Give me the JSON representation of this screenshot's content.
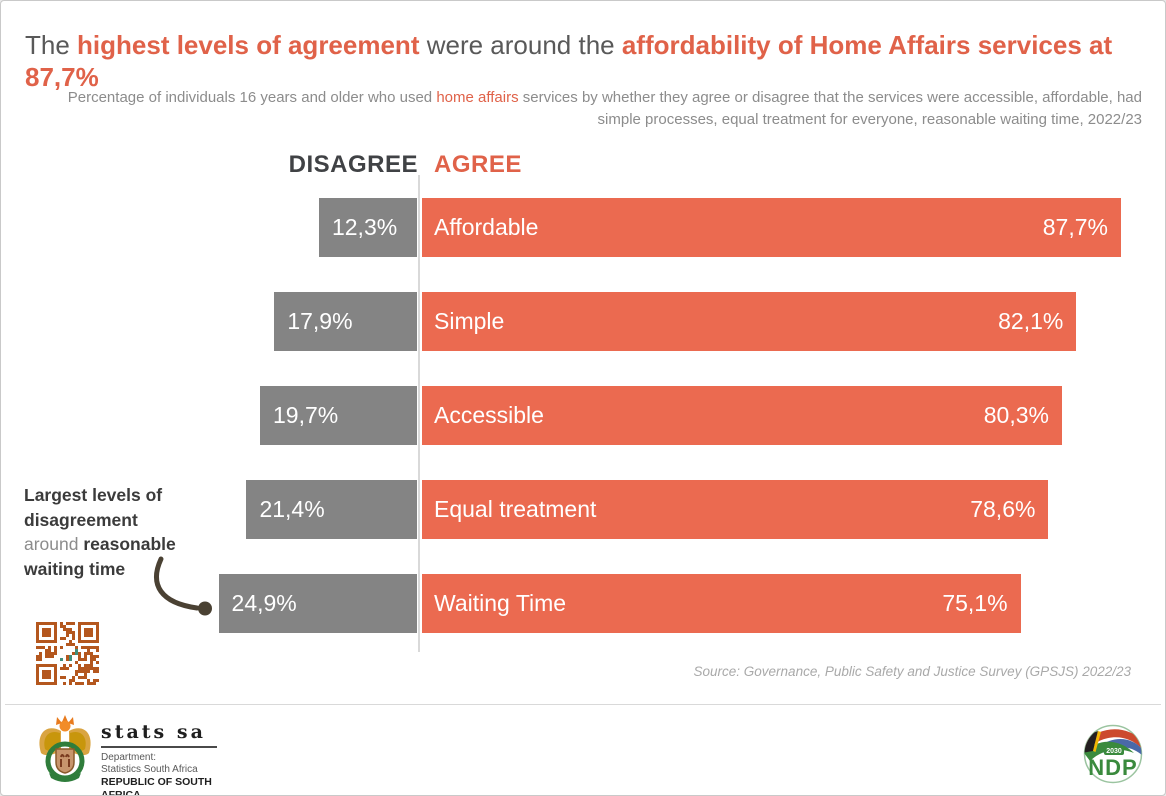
{
  "colors": {
    "accent_title": "#E06249",
    "accent_bar": "#EB6A50",
    "gray_bar": "#848484",
    "arrow": "#4A4133",
    "qr_orange": "#B4571E",
    "qr_teal": "#3E8F7C",
    "ndp_green": "#3A8A3D"
  },
  "title": {
    "parts": [
      {
        "text": "The "
      },
      {
        "text": "highest levels of agreement"
      },
      {
        "text": " were around the "
      },
      {
        "text": "affordability of Home Affairs services at 87,7%"
      }
    ]
  },
  "subtitle": {
    "part1": "Percentage of  individuals 16 years and older who used ",
    "accent": "home affairs",
    "part2": " services by whether they agree or disagree that the services were accessible, affordable, had simple processes, equal treatment for everyone, reasonable waiting time, 2022/23"
  },
  "headers": {
    "disagree": "DISAGREE",
    "agree": "AGREE"
  },
  "chart_data": {
    "type": "bar",
    "variant": "diverging-horizontal",
    "title": "The highest levels of agreement were around the affordability of Home Affairs services at 87,7%",
    "categories": [
      "Affordable",
      "Simple",
      "Accessible",
      "Equal treatment",
      "Waiting Time"
    ],
    "series": [
      {
        "name": "DISAGREE",
        "color": "#848484",
        "values": [
          12.3,
          17.9,
          19.7,
          21.4,
          24.9
        ],
        "labels": [
          "12,3%",
          "17,9%",
          "19,7%",
          "21,4%",
          "24,9%"
        ]
      },
      {
        "name": "AGREE",
        "color": "#EB6A50",
        "values": [
          87.7,
          82.1,
          80.3,
          78.6,
          75.1
        ],
        "labels": [
          "87,7%",
          "82,1%",
          "80,3%",
          "78,6%",
          "75,1%"
        ]
      }
    ],
    "axis_range": [
      0,
      100
    ],
    "unit": "%",
    "grid": false,
    "legend_position": "top-as-column-headers"
  },
  "annotation": {
    "line1": "Largest levels of",
    "line2": "disagreement",
    "line3_regular": "around ",
    "line3_bold": "reasonable",
    "line4": "waiting time"
  },
  "source": "Source: Governance, Public Safety and Justice Survey (GPSJS)  2022/23",
  "footer": {
    "statssa": {
      "name": "stats sa",
      "dept_line1": "Department:",
      "dept_line2": "Statistics South Africa",
      "country": "REPUBLIC OF SOUTH AFRICA"
    },
    "ndp": {
      "label": "NDP",
      "year": "2030"
    }
  }
}
